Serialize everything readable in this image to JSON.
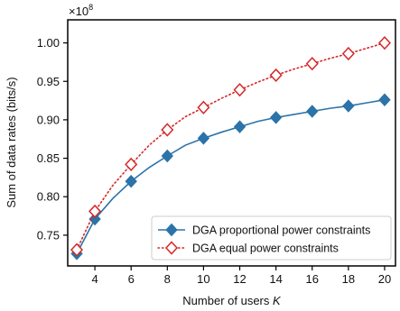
{
  "chart_data": {
    "type": "line",
    "title": "",
    "xlabel": "Number of users",
    "xlabel_var": "K",
    "ylabel": "Sum of data rates (bits/s)",
    "y_multiplier": "×10",
    "y_multiplier_exp": "8",
    "xlim": [
      2.5,
      20.6
    ],
    "ylim": [
      0.71,
      1.03
    ],
    "xticks": [
      4,
      6,
      8,
      10,
      12,
      14,
      16,
      18,
      20
    ],
    "xtick_labels": [
      "4",
      "6",
      "8",
      "10",
      "12",
      "14",
      "16",
      "18",
      "20"
    ],
    "yticks": [
      0.75,
      0.8,
      0.85,
      0.9,
      0.95,
      1.0
    ],
    "ytick_labels": [
      "0.75",
      "0.80",
      "0.85",
      "0.90",
      "0.95",
      "1.00"
    ],
    "grid": false,
    "legend_position": "lower-right",
    "series": [
      {
        "name": "DGA proportional power constraints",
        "color": "#2b73a8",
        "line_style": "solid",
        "marker": "filled-diamond",
        "line": {
          "x": [
            3,
            4,
            5,
            6,
            7,
            8,
            9,
            10,
            11,
            12,
            13,
            14,
            15,
            16,
            17,
            18,
            19,
            20
          ],
          "y": [
            0.726,
            0.771,
            0.798,
            0.82,
            0.838,
            0.853,
            0.867,
            0.876,
            0.884,
            0.891,
            0.898,
            0.903,
            0.907,
            0.911,
            0.915,
            0.918,
            0.922,
            0.926
          ]
        },
        "markers": {
          "x": [
            3,
            4,
            6,
            8,
            10,
            12,
            14,
            16,
            18,
            20
          ],
          "y": [
            0.726,
            0.771,
            0.82,
            0.853,
            0.876,
            0.891,
            0.903,
            0.911,
            0.918,
            0.926
          ]
        }
      },
      {
        "name": "DGA equal power constraints",
        "color": "#d62728",
        "line_style": "dotted",
        "marker": "open-diamond",
        "line": {
          "x": [
            3,
            4,
            5,
            6,
            7,
            8,
            9,
            10,
            11,
            12,
            13,
            14,
            15,
            16,
            17,
            18,
            19,
            20
          ],
          "y": [
            0.731,
            0.781,
            0.815,
            0.842,
            0.867,
            0.887,
            0.904,
            0.916,
            0.928,
            0.939,
            0.949,
            0.958,
            0.966,
            0.973,
            0.98,
            0.986,
            0.993,
            1.0
          ]
        },
        "markers": {
          "x": [
            3,
            4,
            6,
            8,
            10,
            12,
            14,
            16,
            18,
            20
          ],
          "y": [
            0.731,
            0.781,
            0.842,
            0.887,
            0.916,
            0.939,
            0.958,
            0.973,
            0.986,
            1.0
          ]
        }
      }
    ]
  }
}
